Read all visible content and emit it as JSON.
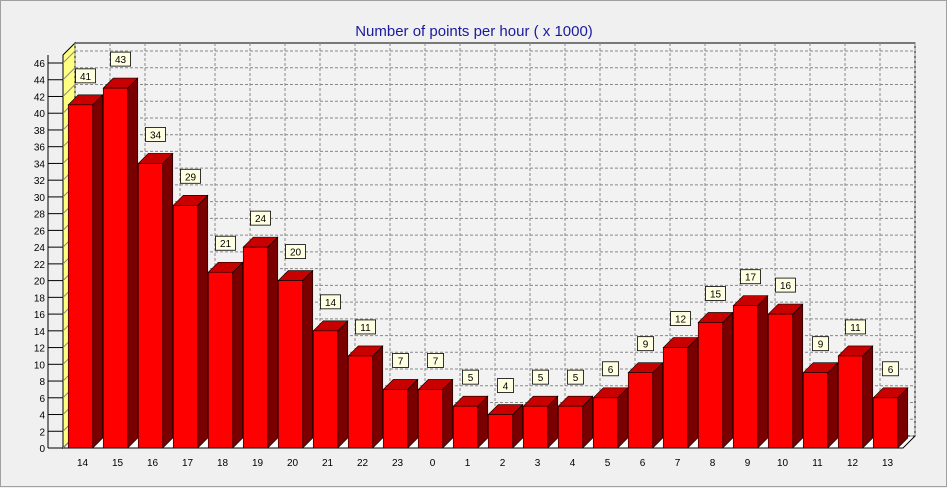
{
  "chart_data": {
    "type": "bar",
    "title": "Number of points per hour ( x 1000)",
    "xlabel": "",
    "ylabel": "",
    "categories": [
      "14",
      "15",
      "16",
      "17",
      "18",
      "19",
      "20",
      "21",
      "22",
      "23",
      "0",
      "1",
      "2",
      "3",
      "4",
      "5",
      "6",
      "7",
      "8",
      "9",
      "10",
      "11",
      "12",
      "13"
    ],
    "values": [
      41,
      43,
      34,
      29,
      21,
      24,
      20,
      14,
      11,
      7,
      7,
      5,
      4,
      5,
      5,
      6,
      9,
      12,
      15,
      17,
      16,
      9,
      11,
      6
    ],
    "ylim": [
      0,
      46
    ],
    "yticks": [
      0,
      2,
      4,
      6,
      8,
      10,
      12,
      14,
      16,
      18,
      20,
      22,
      24,
      26,
      28,
      30,
      32,
      34,
      36,
      38,
      40,
      42,
      44,
      46
    ],
    "grid": true,
    "data_labels": true,
    "style": "3d",
    "colors": {
      "bar_front": "#ff0000",
      "bar_side": "#7a0000",
      "bar_top": "#c80000",
      "plot_bg": "#f2f2f2",
      "wall": "#ffff80",
      "label_bg": "#ffffe1"
    }
  }
}
